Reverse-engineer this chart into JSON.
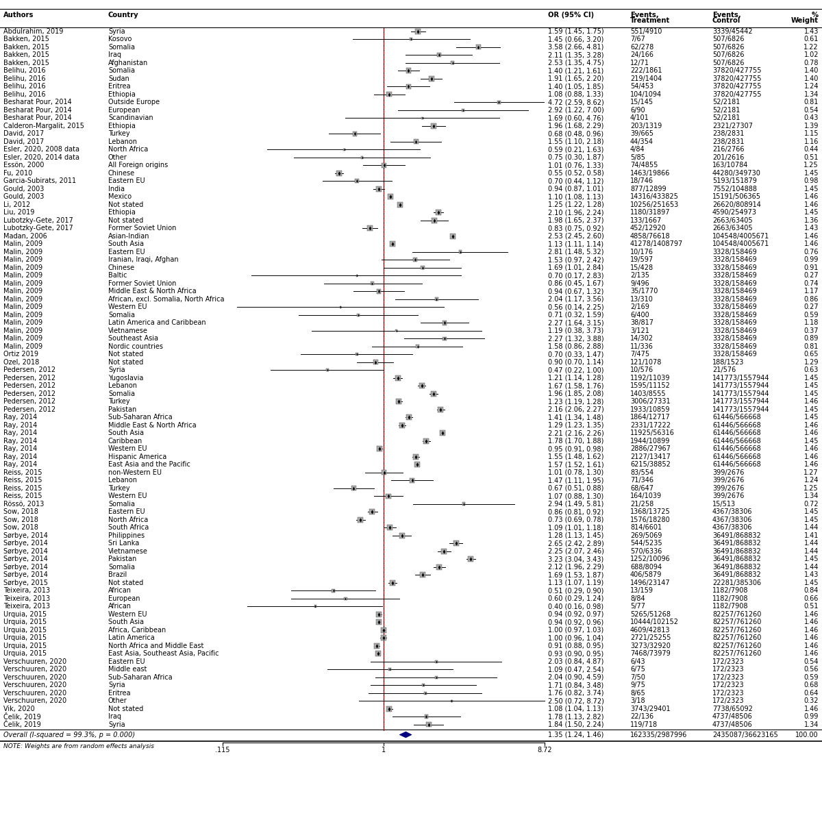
{
  "note": "NOTE: Weights are from random effects analysis",
  "overall_label": "Overall (I-squared = 99.3%, p = 0.000)",
  "overall_or": 1.35,
  "overall_ci_lo": 1.24,
  "overall_ci_hi": 1.46,
  "overall_weight": 100.0,
  "overall_events_t": "162335/2987996",
  "overall_events_c": "2435087/36623165",
  "x_min": 0.115,
  "x_max": 8.72,
  "rows": [
    {
      "author": "Abdulrahim, 2019",
      "country": "Syria",
      "or": 1.59,
      "lo": 1.45,
      "hi": 1.75,
      "ev_t": "551/4910",
      "ev_c": "3339/45442",
      "weight": 1.43
    },
    {
      "author": "Bakken, 2015",
      "country": "Kosovo",
      "or": 1.45,
      "lo": 0.66,
      "hi": 3.2,
      "ev_t": "7/67",
      "ev_c": "507/6826",
      "weight": 0.61
    },
    {
      "author": "Bakken, 2015",
      "country": "Somalia",
      "or": 3.58,
      "lo": 2.66,
      "hi": 4.81,
      "ev_t": "62/278",
      "ev_c": "507/6826",
      "weight": 1.22
    },
    {
      "author": "Bakken, 2015",
      "country": "Iraq",
      "or": 2.11,
      "lo": 1.35,
      "hi": 3.28,
      "ev_t": "24/166",
      "ev_c": "507/6826",
      "weight": 1.02
    },
    {
      "author": "Bakken, 2015",
      "country": "Afghanistan",
      "or": 2.53,
      "lo": 1.35,
      "hi": 4.75,
      "ev_t": "12/71",
      "ev_c": "507/6826",
      "weight": 0.78
    },
    {
      "author": "Belihu, 2016",
      "country": "Somalia",
      "or": 1.4,
      "lo": 1.21,
      "hi": 1.61,
      "ev_t": "222/1861",
      "ev_c": "37820/427755",
      "weight": 1.4
    },
    {
      "author": "Belihu, 2016",
      "country": "Sudan",
      "or": 1.91,
      "lo": 1.65,
      "hi": 2.2,
      "ev_t": "219/1404",
      "ev_c": "37820/427755",
      "weight": 1.4
    },
    {
      "author": "Belihu, 2016",
      "country": "Eritrea",
      "or": 1.4,
      "lo": 1.05,
      "hi": 1.85,
      "ev_t": "54/453",
      "ev_c": "37820/427755",
      "weight": 1.24
    },
    {
      "author": "Belihu, 2016",
      "country": "Ethiopia",
      "or": 1.08,
      "lo": 0.88,
      "hi": 1.33,
      "ev_t": "104/1094",
      "ev_c": "37820/427755",
      "weight": 1.34
    },
    {
      "author": "Besharat Pour, 2014",
      "country": "Outside Europe",
      "or": 4.72,
      "lo": 2.59,
      "hi": 8.62,
      "ev_t": "15/145",
      "ev_c": "52/2181",
      "weight": 0.81
    },
    {
      "author": "Besharat Pour, 2014",
      "country": "European",
      "or": 2.92,
      "lo": 1.22,
      "hi": 7.0,
      "ev_t": "6/90",
      "ev_c": "52/2181",
      "weight": 0.54
    },
    {
      "author": "Besharat Pour, 2014",
      "country": "Scandinavian",
      "or": 1.69,
      "lo": 0.6,
      "hi": 4.76,
      "ev_t": "4/101",
      "ev_c": "52/2181",
      "weight": 0.43
    },
    {
      "author": "Calderon-Margalit, 2015",
      "country": "Ethiopia",
      "or": 1.96,
      "lo": 1.68,
      "hi": 2.29,
      "ev_t": "203/1319",
      "ev_c": "2321/27307",
      "weight": 1.39
    },
    {
      "author": "David, 2017",
      "country": "Turkey",
      "or": 0.68,
      "lo": 0.48,
      "hi": 0.96,
      "ev_t": "39/665",
      "ev_c": "238/2831",
      "weight": 1.15
    },
    {
      "author": "David, 2017",
      "country": "Lebanon",
      "or": 1.55,
      "lo": 1.1,
      "hi": 2.18,
      "ev_t": "44/354",
      "ev_c": "238/2831",
      "weight": 1.16
    },
    {
      "author": "Esler, 2020, 2008 data",
      "country": "North Africa",
      "or": 0.59,
      "lo": 0.21,
      "hi": 1.63,
      "ev_t": "4/84",
      "ev_c": "216/2766",
      "weight": 0.44
    },
    {
      "author": "Esler, 2020, 2014 data",
      "country": "Other",
      "or": 0.75,
      "lo": 0.3,
      "hi": 1.87,
      "ev_t": "5/85",
      "ev_c": "201/2616",
      "weight": 0.51
    },
    {
      "author": "Essön, 2000",
      "country": "All Foreign origins",
      "or": 1.01,
      "lo": 0.76,
      "hi": 1.33,
      "ev_t": "74/4855",
      "ev_c": "163/10784",
      "weight": 1.25
    },
    {
      "author": "Fu, 2010",
      "country": "Chinese",
      "or": 0.55,
      "lo": 0.52,
      "hi": 0.58,
      "ev_t": "1463/19866",
      "ev_c": "44280/349730",
      "weight": 1.45
    },
    {
      "author": "Garcia-Subirats, 2011",
      "country": "Eastern EU",
      "or": 0.7,
      "lo": 0.44,
      "hi": 1.12,
      "ev_t": "18/746",
      "ev_c": "5193/151879",
      "weight": 0.98
    },
    {
      "author": "Gould, 2003",
      "country": "India",
      "or": 0.94,
      "lo": 0.87,
      "hi": 1.01,
      "ev_t": "877/12899",
      "ev_c": "7552/104888",
      "weight": 1.45
    },
    {
      "author": "Gould, 2003",
      "country": "Mexico",
      "or": 1.1,
      "lo": 1.08,
      "hi": 1.13,
      "ev_t": "14316/433825",
      "ev_c": "15191/506365",
      "weight": 1.46
    },
    {
      "author": "Li, 2012",
      "country": "Not stated",
      "or": 1.25,
      "lo": 1.22,
      "hi": 1.28,
      "ev_t": "10256/251653",
      "ev_c": "26620/808914",
      "weight": 1.46
    },
    {
      "author": "Liu, 2019",
      "country": "Ethiopia",
      "or": 2.1,
      "lo": 1.96,
      "hi": 2.24,
      "ev_t": "1180/31897",
      "ev_c": "4590/254973",
      "weight": 1.45
    },
    {
      "author": "Lubotzky-Gete, 2017",
      "country": "Not stated",
      "or": 1.98,
      "lo": 1.65,
      "hi": 2.37,
      "ev_t": "133/1667",
      "ev_c": "2663/63405",
      "weight": 1.36
    },
    {
      "author": "Lubotzky-Gete, 2017",
      "country": "Former Soviet Union",
      "or": 0.83,
      "lo": 0.75,
      "hi": 0.92,
      "ev_t": "452/12920",
      "ev_c": "2663/63405",
      "weight": 1.43
    },
    {
      "author": "Madan, 2006",
      "country": "Asian-Indian",
      "or": 2.53,
      "lo": 2.45,
      "hi": 2.6,
      "ev_t": "4858/76618",
      "ev_c": "104548/4005671",
      "weight": 1.46
    },
    {
      "author": "Malin, 2009",
      "country": "South Asia",
      "or": 1.13,
      "lo": 1.11,
      "hi": 1.14,
      "ev_t": "41278/1408797",
      "ev_c": "104548/4005671",
      "weight": 1.46
    },
    {
      "author": "Malin, 2009",
      "country": "Eastern EU",
      "or": 2.81,
      "lo": 1.48,
      "hi": 5.32,
      "ev_t": "10/176",
      "ev_c": "3328/158469",
      "weight": 0.76
    },
    {
      "author": "Malin, 2009",
      "country": "Iranian, Iraqi, Afghan",
      "or": 1.53,
      "lo": 0.97,
      "hi": 2.42,
      "ev_t": "19/597",
      "ev_c": "3328/158469",
      "weight": 0.99
    },
    {
      "author": "Malin, 2009",
      "country": "Chinese",
      "or": 1.69,
      "lo": 1.01,
      "hi": 2.84,
      "ev_t": "15/428",
      "ev_c": "3328/158469",
      "weight": 0.91
    },
    {
      "author": "Malin, 2009",
      "country": "Baltic",
      "or": 0.7,
      "lo": 0.17,
      "hi": 2.83,
      "ev_t": "2/135",
      "ev_c": "3328/158469",
      "weight": 0.27
    },
    {
      "author": "Malin, 2009",
      "country": "Former Soviet Union",
      "or": 0.86,
      "lo": 0.45,
      "hi": 1.67,
      "ev_t": "9/496",
      "ev_c": "3328/158469",
      "weight": 0.74
    },
    {
      "author": "Malin, 2009",
      "country": "Middle East & North Africa",
      "or": 0.94,
      "lo": 0.67,
      "hi": 1.32,
      "ev_t": "35/1770",
      "ev_c": "3328/158469",
      "weight": 1.17
    },
    {
      "author": "Malin, 2009",
      "country": "African, excl. Somalia, North Africa",
      "or": 2.04,
      "lo": 1.17,
      "hi": 3.56,
      "ev_t": "13/310",
      "ev_c": "3328/158469",
      "weight": 0.86
    },
    {
      "author": "Malin, 2009",
      "country": "Western EU",
      "or": 0.56,
      "lo": 0.14,
      "hi": 2.25,
      "ev_t": "2/169",
      "ev_c": "3328/158469",
      "weight": 0.27
    },
    {
      "author": "Malin, 2009",
      "country": "Somalia",
      "or": 0.71,
      "lo": 0.32,
      "hi": 1.59,
      "ev_t": "6/400",
      "ev_c": "3328/158469",
      "weight": 0.59
    },
    {
      "author": "Malin, 2009",
      "country": "Latin America and Caribbean",
      "or": 2.27,
      "lo": 1.64,
      "hi": 3.15,
      "ev_t": "38/817",
      "ev_c": "3328/158469",
      "weight": 1.18
    },
    {
      "author": "Malin, 2009",
      "country": "Vietnamese",
      "or": 1.19,
      "lo": 0.38,
      "hi": 3.73,
      "ev_t": "3/121",
      "ev_c": "3328/158469",
      "weight": 0.37
    },
    {
      "author": "Malin, 2009",
      "country": "Southeast Asia",
      "or": 2.27,
      "lo": 1.32,
      "hi": 3.88,
      "ev_t": "14/302",
      "ev_c": "3328/158469",
      "weight": 0.89
    },
    {
      "author": "Malin, 2009",
      "country": "Nordic countries",
      "or": 1.58,
      "lo": 0.86,
      "hi": 2.88,
      "ev_t": "11/336",
      "ev_c": "3328/158469",
      "weight": 0.81
    },
    {
      "author": "Ortiz 2019",
      "country": "Not stated",
      "or": 0.7,
      "lo": 0.33,
      "hi": 1.47,
      "ev_t": "7/475",
      "ev_c": "3328/158469",
      "weight": 0.65
    },
    {
      "author": "Ozel, 2018",
      "country": "Not stated",
      "or": 0.9,
      "lo": 0.7,
      "hi": 1.14,
      "ev_t": "121/1078",
      "ev_c": "188/1523",
      "weight": 1.29
    },
    {
      "author": "Pedersen, 2012",
      "country": "Syria",
      "or": 0.47,
      "lo": 0.22,
      "hi": 1.0,
      "ev_t": "10/576",
      "ev_c": "21/576",
      "weight": 0.63
    },
    {
      "author": "Pedersen, 2012",
      "country": "Yugoslavia",
      "or": 1.21,
      "lo": 1.14,
      "hi": 1.28,
      "ev_t": "1192/11039",
      "ev_c": "141773/1557944",
      "weight": 1.45
    },
    {
      "author": "Pedersen, 2012",
      "country": "Lebanon",
      "or": 1.67,
      "lo": 1.58,
      "hi": 1.76,
      "ev_t": "1595/11152",
      "ev_c": "141773/1557944",
      "weight": 1.45
    },
    {
      "author": "Pedersen, 2012",
      "country": "Somalia",
      "or": 1.96,
      "lo": 1.85,
      "hi": 2.08,
      "ev_t": "1403/8555",
      "ev_c": "141773/1557944",
      "weight": 1.45
    },
    {
      "author": "Pedersen, 2012",
      "country": "Turkey",
      "or": 1.23,
      "lo": 1.19,
      "hi": 1.28,
      "ev_t": "3006/27331",
      "ev_c": "141773/1557944",
      "weight": 1.46
    },
    {
      "author": "Pedersen, 2012",
      "country": "Pakistan",
      "or": 2.16,
      "lo": 2.06,
      "hi": 2.27,
      "ev_t": "1933/10859",
      "ev_c": "141773/1557944",
      "weight": 1.45
    },
    {
      "author": "Ray, 2014",
      "country": "Sub-Saharan Africa",
      "or": 1.41,
      "lo": 1.34,
      "hi": 1.48,
      "ev_t": "1864/12717",
      "ev_c": "61446/566668",
      "weight": 1.45
    },
    {
      "author": "Ray, 2014",
      "country": "Middle East & North Africa",
      "or": 1.29,
      "lo": 1.23,
      "hi": 1.35,
      "ev_t": "2331/17222",
      "ev_c": "61446/566668",
      "weight": 1.46
    },
    {
      "author": "Ray, 2014",
      "country": "South Asia",
      "or": 2.21,
      "lo": 2.16,
      "hi": 2.26,
      "ev_t": "11925/56316",
      "ev_c": "61446/566668",
      "weight": 1.46
    },
    {
      "author": "Ray, 2014",
      "country": "Caribbean",
      "or": 1.78,
      "lo": 1.7,
      "hi": 1.88,
      "ev_t": "1944/10899",
      "ev_c": "61446/566668",
      "weight": 1.45
    },
    {
      "author": "Ray, 2014",
      "country": "Western EU",
      "or": 0.95,
      "lo": 0.91,
      "hi": 0.98,
      "ev_t": "2886/27967",
      "ev_c": "61446/566668",
      "weight": 1.46
    },
    {
      "author": "Ray, 2014",
      "country": "Hispanic America",
      "or": 1.55,
      "lo": 1.48,
      "hi": 1.62,
      "ev_t": "2127/13417",
      "ev_c": "61446/566668",
      "weight": 1.46
    },
    {
      "author": "Ray, 2014",
      "country": "East Asia and the Pacific",
      "or": 1.57,
      "lo": 1.52,
      "hi": 1.61,
      "ev_t": "6215/38852",
      "ev_c": "61446/566668",
      "weight": 1.46
    },
    {
      "author": "Reiss, 2015",
      "country": "non-Western EU",
      "or": 1.01,
      "lo": 0.78,
      "hi": 1.3,
      "ev_t": "83/554",
      "ev_c": "399/2676",
      "weight": 1.27
    },
    {
      "author": "Reiss, 2015",
      "country": "Lebanon",
      "or": 1.47,
      "lo": 1.11,
      "hi": 1.95,
      "ev_t": "71/346",
      "ev_c": "399/2676",
      "weight": 1.24
    },
    {
      "author": "Reiss, 2015",
      "country": "Turkey",
      "or": 0.67,
      "lo": 0.51,
      "hi": 0.88,
      "ev_t": "68/647",
      "ev_c": "399/2676",
      "weight": 1.25
    },
    {
      "author": "Reiss, 2015",
      "country": "Western EU",
      "or": 1.07,
      "lo": 0.88,
      "hi": 1.3,
      "ev_t": "164/1039",
      "ev_c": "399/2676",
      "weight": 1.34
    },
    {
      "author": "Rössö, 2013",
      "country": "Somalia",
      "or": 2.94,
      "lo": 1.49,
      "hi": 5.81,
      "ev_t": "21/258",
      "ev_c": "15/513",
      "weight": 0.72
    },
    {
      "author": "Sow, 2018",
      "country": "Eastern EU",
      "or": 0.86,
      "lo": 0.81,
      "hi": 0.92,
      "ev_t": "1368/13725",
      "ev_c": "4367/38306",
      "weight": 1.45
    },
    {
      "author": "Sow, 2018",
      "country": "North Africa",
      "or": 0.73,
      "lo": 0.69,
      "hi": 0.78,
      "ev_t": "1576/18280",
      "ev_c": "4367/38306",
      "weight": 1.45
    },
    {
      "author": "Sow, 2018",
      "country": "South Africa",
      "or": 1.09,
      "lo": 1.01,
      "hi": 1.18,
      "ev_t": "814/6601",
      "ev_c": "4367/38306",
      "weight": 1.44
    },
    {
      "author": "Sørbye, 2014",
      "country": "Philippines",
      "or": 1.28,
      "lo": 1.13,
      "hi": 1.45,
      "ev_t": "269/5069",
      "ev_c": "36491/868832",
      "weight": 1.41
    },
    {
      "author": "Sørbye, 2014",
      "country": "Sri Lanka",
      "or": 2.65,
      "lo": 2.42,
      "hi": 2.89,
      "ev_t": "544/5235",
      "ev_c": "36491/868832",
      "weight": 1.44
    },
    {
      "author": "Sørbye, 2014",
      "country": "Vietnamese",
      "or": 2.25,
      "lo": 2.07,
      "hi": 2.46,
      "ev_t": "570/6336",
      "ev_c": "36491/868832",
      "weight": 1.44
    },
    {
      "author": "Sørbye, 2014",
      "country": "Pakistan",
      "or": 3.23,
      "lo": 3.04,
      "hi": 3.43,
      "ev_t": "1252/10096",
      "ev_c": "36491/868832",
      "weight": 1.45
    },
    {
      "author": "Sørbye, 2014",
      "country": "Somalia",
      "or": 2.12,
      "lo": 1.96,
      "hi": 2.29,
      "ev_t": "688/8094",
      "ev_c": "36491/868832",
      "weight": 1.44
    },
    {
      "author": "Sørbye, 2014",
      "country": "Brazil",
      "or": 1.69,
      "lo": 1.53,
      "hi": 1.87,
      "ev_t": "406/5879",
      "ev_c": "36491/868832",
      "weight": 1.43
    },
    {
      "author": "Sørbye, 2015",
      "country": "Not stated",
      "or": 1.13,
      "lo": 1.07,
      "hi": 1.19,
      "ev_t": "1496/23147",
      "ev_c": "22281/385306",
      "weight": 1.45
    },
    {
      "author": "Teixeira, 2013",
      "country": "African",
      "or": 0.51,
      "lo": 0.29,
      "hi": 0.9,
      "ev_t": "13/159",
      "ev_c": "1182/7908",
      "weight": 0.84
    },
    {
      "author": "Teixeira, 2013",
      "country": "European",
      "or": 0.6,
      "lo": 0.29,
      "hi": 1.24,
      "ev_t": "8/84",
      "ev_c": "1182/7908",
      "weight": 0.66
    },
    {
      "author": "Teixeira, 2013",
      "country": "African",
      "or": 0.4,
      "lo": 0.16,
      "hi": 0.98,
      "ev_t": "5/77",
      "ev_c": "1182/7908",
      "weight": 0.51
    },
    {
      "author": "Urquia, 2015",
      "country": "Western EU",
      "or": 0.94,
      "lo": 0.92,
      "hi": 0.97,
      "ev_t": "5265/51268",
      "ev_c": "82257/761260",
      "weight": 1.46
    },
    {
      "author": "Urquia, 2015",
      "country": "South Asia",
      "or": 0.94,
      "lo": 0.92,
      "hi": 0.96,
      "ev_t": "10444/102152",
      "ev_c": "82257/761260",
      "weight": 1.46
    },
    {
      "author": "Urquia, 2015",
      "country": "Africa, Caribbean",
      "or": 1.0,
      "lo": 0.97,
      "hi": 1.03,
      "ev_t": "4609/42813",
      "ev_c": "82257/761260",
      "weight": 1.46
    },
    {
      "author": "Urquia, 2015",
      "country": "Latin America",
      "or": 1.0,
      "lo": 0.96,
      "hi": 1.04,
      "ev_t": "2721/25255",
      "ev_c": "82257/761260",
      "weight": 1.46
    },
    {
      "author": "Urquia, 2015",
      "country": "North Africa and Middle East",
      "or": 0.91,
      "lo": 0.88,
      "hi": 0.95,
      "ev_t": "3273/32920",
      "ev_c": "82257/761260",
      "weight": 1.46
    },
    {
      "author": "Urquia, 2015",
      "country": "East Asia, Southeast Asia, Pacific",
      "or": 0.93,
      "lo": 0.9,
      "hi": 0.95,
      "ev_t": "7468/73979",
      "ev_c": "82257/761260",
      "weight": 1.46
    },
    {
      "author": "Verschuuren, 2020",
      "country": "Eastern EU",
      "or": 2.03,
      "lo": 0.84,
      "hi": 4.87,
      "ev_t": "6/43",
      "ev_c": "172/2323",
      "weight": 0.54
    },
    {
      "author": "Verschuuren, 2020",
      "country": "Middle east",
      "or": 1.09,
      "lo": 0.47,
      "hi": 2.54,
      "ev_t": "6/75",
      "ev_c": "172/2323",
      "weight": 0.56
    },
    {
      "author": "Verschuuren, 2020",
      "country": "Sub-Saharan Africa",
      "or": 2.04,
      "lo": 0.9,
      "hi": 4.59,
      "ev_t": "7/50",
      "ev_c": "172/2323",
      "weight": 0.59
    },
    {
      "author": "Verschuuren, 2020",
      "country": "Syria",
      "or": 1.71,
      "lo": 0.84,
      "hi": 3.48,
      "ev_t": "9/75",
      "ev_c": "172/2323",
      "weight": 0.68
    },
    {
      "author": "Verschuuren, 2020",
      "country": "Eritrea",
      "or": 1.76,
      "lo": 0.82,
      "hi": 3.74,
      "ev_t": "8/65",
      "ev_c": "172/2323",
      "weight": 0.64
    },
    {
      "author": "Verschuuren, 2020",
      "country": "Other",
      "or": 2.5,
      "lo": 0.72,
      "hi": 8.72,
      "ev_t": "3/18",
      "ev_c": "172/2323",
      "weight": 0.32
    },
    {
      "author": "Vik, 2020",
      "country": "Not stated",
      "or": 1.08,
      "lo": 1.04,
      "hi": 1.13,
      "ev_t": "3743/29401",
      "ev_c": "7738/65092",
      "weight": 1.46
    },
    {
      "author": "Čelik, 2019",
      "country": "Iraq",
      "or": 1.78,
      "lo": 1.13,
      "hi": 2.82,
      "ev_t": "22/136",
      "ev_c": "4737/48506",
      "weight": 0.99
    },
    {
      "author": "Čelik, 2019",
      "country": "Syria",
      "or": 1.84,
      "lo": 1.5,
      "hi": 2.24,
      "ev_t": "119/718",
      "ev_c": "4737/48506",
      "weight": 1.34
    }
  ]
}
